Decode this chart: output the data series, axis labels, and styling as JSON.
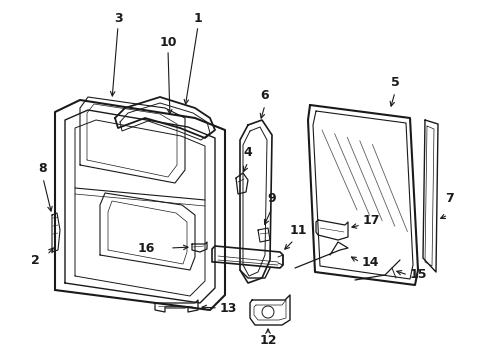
{
  "bg_color": "#ffffff",
  "lc": "#1a1a1a",
  "figsize": [
    4.9,
    3.6
  ],
  "dpi": 100
}
